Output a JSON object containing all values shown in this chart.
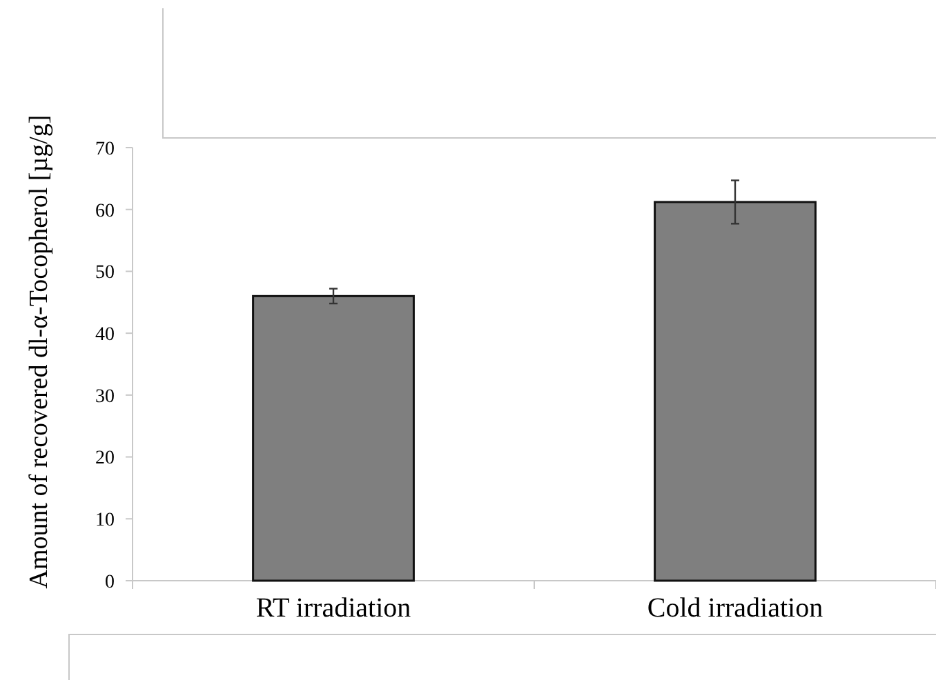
{
  "chart_data": {
    "type": "bar",
    "ylabel": "Amount of recovered dl-α-Tocopherol  [µg/g]",
    "categories": [
      "RT irradiation",
      "Cold irradiation"
    ],
    "values": [
      46.0,
      61.2
    ],
    "errors": [
      1.2,
      3.5
    ],
    "color": "#7f7f7f",
    "ylim": [
      0,
      70
    ],
    "yticks": [
      0,
      10,
      20,
      30,
      40,
      50,
      60,
      70
    ],
    "grid": false
  }
}
